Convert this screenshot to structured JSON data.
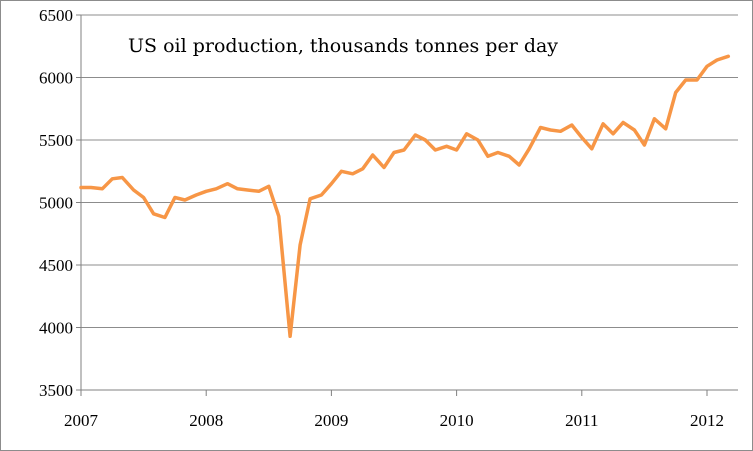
{
  "chart_data": {
    "type": "line",
    "title": "US oil production, thousands tonnes per day",
    "xlabel": "",
    "ylabel": "",
    "ylim": [
      3500,
      6500
    ],
    "xlim": [
      2007,
      2012.17
    ],
    "grid": true,
    "legend": "none",
    "colors": {
      "series": "#F79646",
      "grid": "#8c8c8c"
    },
    "y_ticks": [
      "3500",
      "4000",
      "4500",
      "5000",
      "5500",
      "6000",
      "6500"
    ],
    "x_ticks": [
      "2007",
      "2008",
      "2009",
      "2010",
      "2011",
      "2012"
    ],
    "series": [
      {
        "x": [
          2007.0,
          2007.08,
          2007.17,
          2007.25,
          2007.33,
          2007.42,
          2007.5,
          2007.58,
          2007.67,
          2007.75,
          2007.83,
          2007.92,
          2008.0,
          2008.08,
          2008.17,
          2008.25,
          2008.33,
          2008.42,
          2008.5,
          2008.58,
          2008.67,
          2008.75,
          2008.83,
          2008.92,
          2009.0,
          2009.08,
          2009.17,
          2009.25,
          2009.33,
          2009.42,
          2009.5,
          2009.58,
          2009.67,
          2009.75,
          2009.83,
          2009.92,
          2010.0,
          2010.08,
          2010.17,
          2010.25,
          2010.33,
          2010.42,
          2010.5,
          2010.58,
          2010.67,
          2010.75,
          2010.83,
          2010.92,
          2011.0,
          2011.08,
          2011.17,
          2011.25,
          2011.33,
          2011.42,
          2011.5,
          2011.58,
          2011.67,
          2011.75,
          2011.83,
          2011.92,
          2012.0,
          2012.08,
          2012.17
        ],
        "values": [
          5120,
          5120,
          5110,
          5190,
          5200,
          5100,
          5040,
          4910,
          4880,
          5040,
          5020,
          5060,
          5090,
          5110,
          5150,
          5110,
          5100,
          5090,
          5130,
          4890,
          3930,
          4660,
          5030,
          5060,
          5150,
          5250,
          5230,
          5270,
          5380,
          5280,
          5400,
          5420,
          5540,
          5500,
          5420,
          5450,
          5420,
          5550,
          5500,
          5370,
          5400,
          5370,
          5300,
          5430,
          5600,
          5580,
          5570,
          5620,
          5520,
          5430,
          5630,
          5550,
          5640,
          5580,
          5460,
          5670,
          5590,
          5880,
          5980,
          5980,
          6090,
          6140,
          6170
        ]
      }
    ]
  }
}
